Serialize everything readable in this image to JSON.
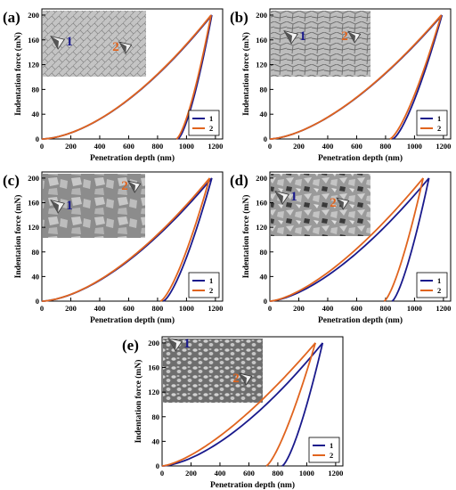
{
  "chart_data": [
    {
      "type": "line",
      "panel_label": "(a)",
      "xlabel": "Penetration depth (nm)",
      "ylabel": "Indentation force (mN)",
      "xlim": [
        0,
        1250
      ],
      "ylim": [
        0,
        210
      ],
      "xticks": [
        0,
        200,
        400,
        600,
        800,
        1000,
        1200
      ],
      "yticks": [
        0,
        40,
        80,
        120,
        160,
        200
      ],
      "legend_position": "bottom-right",
      "inset_markers": [
        "1",
        "2"
      ],
      "series": [
        {
          "name": "1",
          "color": "#1a1a8c",
          "loading": {
            "max_depth": 1175,
            "max_force": 200,
            "exponent": 1.7
          },
          "unloading": {
            "final_depth": 940,
            "exponent": 1.45
          }
        },
        {
          "name": "2",
          "color": "#e0641e",
          "loading": {
            "max_depth": 1170,
            "max_force": 200,
            "exponent": 1.7
          },
          "unloading": {
            "final_depth": 930,
            "exponent": 1.45
          }
        }
      ]
    },
    {
      "type": "line",
      "panel_label": "(b)",
      "xlabel": "Penetration depth (nm)",
      "ylabel": "Indentation force (mN)",
      "xlim": [
        0,
        1250
      ],
      "ylim": [
        0,
        210
      ],
      "xticks": [
        0,
        200,
        400,
        600,
        800,
        1000,
        1200
      ],
      "yticks": [
        0,
        40,
        80,
        120,
        160,
        200
      ],
      "legend_position": "bottom-right",
      "inset_markers": [
        "1",
        "2"
      ],
      "series": [
        {
          "name": "1",
          "color": "#1a1a8c",
          "loading": {
            "max_depth": 1190,
            "max_force": 200,
            "exponent": 1.6
          },
          "unloading": {
            "final_depth": 850,
            "exponent": 1.4
          }
        },
        {
          "name": "2",
          "color": "#e0641e",
          "loading": {
            "max_depth": 1185,
            "max_force": 200,
            "exponent": 1.6
          },
          "unloading": {
            "final_depth": 830,
            "exponent": 1.4
          }
        }
      ]
    },
    {
      "type": "line",
      "panel_label": "(c)",
      "xlabel": "Penetration depth (nm)",
      "ylabel": "Indentation force (mN)",
      "xlim": [
        0,
        1250
      ],
      "ylim": [
        0,
        210
      ],
      "xticks": [
        0,
        200,
        400,
        600,
        800,
        1000,
        1200
      ],
      "yticks": [
        0,
        40,
        80,
        120,
        160,
        200
      ],
      "legend_position": "bottom-right",
      "inset_markers": [
        "1",
        "2"
      ],
      "series": [
        {
          "name": "1",
          "color": "#1a1a8c",
          "loading": {
            "max_depth": 1175,
            "max_force": 200,
            "exponent": 1.65
          },
          "unloading": {
            "final_depth": 840,
            "exponent": 1.4
          }
        },
        {
          "name": "2",
          "color": "#e0641e",
          "loading": {
            "max_depth": 1160,
            "max_force": 200,
            "exponent": 1.65
          },
          "unloading": {
            "final_depth": 820,
            "exponent": 1.4
          }
        }
      ]
    },
    {
      "type": "line",
      "panel_label": "(d)",
      "xlabel": "Penetration depth (nm)",
      "ylabel": "Indentation force (mN)",
      "xlim": [
        0,
        1250
      ],
      "ylim": [
        0,
        210
      ],
      "xticks": [
        0,
        200,
        400,
        600,
        800,
        1000,
        1200
      ],
      "yticks": [
        0,
        40,
        80,
        120,
        160,
        200
      ],
      "legend_position": "bottom-right",
      "inset_markers": [
        "1",
        "2"
      ],
      "series": [
        {
          "name": "1",
          "color": "#1a1a8c",
          "loading": {
            "max_depth": 1100,
            "max_force": 200,
            "exponent": 1.55
          },
          "unloading": {
            "final_depth": 845,
            "exponent": 1.4
          }
        },
        {
          "name": "2",
          "color": "#e0641e",
          "loading": {
            "max_depth": 1060,
            "max_force": 200,
            "exponent": 1.5
          },
          "unloading": {
            "final_depth": 790,
            "exponent": 1.4
          }
        }
      ]
    },
    {
      "type": "line",
      "panel_label": "(e)",
      "xlabel": "Penetration depth (nm)",
      "ylabel": "Indentation force (mN)",
      "xlim": [
        0,
        1250
      ],
      "ylim": [
        0,
        210
      ],
      "xticks": [
        0,
        200,
        400,
        600,
        800,
        1000,
        1200
      ],
      "yticks": [
        0,
        40,
        80,
        120,
        160,
        200
      ],
      "legend_position": "bottom-right",
      "inset_markers": [
        "1",
        "2"
      ],
      "series": [
        {
          "name": "1",
          "color": "#1a1a8c",
          "loading": {
            "max_depth": 1110,
            "max_force": 200,
            "exponent": 1.6
          },
          "unloading": {
            "final_depth": 830,
            "exponent": 1.4
          }
        },
        {
          "name": "2",
          "color": "#e0641e",
          "loading": {
            "max_depth": 1060,
            "max_force": 200,
            "exponent": 1.45
          },
          "unloading": {
            "final_depth": 720,
            "exponent": 1.35
          }
        }
      ]
    }
  ]
}
